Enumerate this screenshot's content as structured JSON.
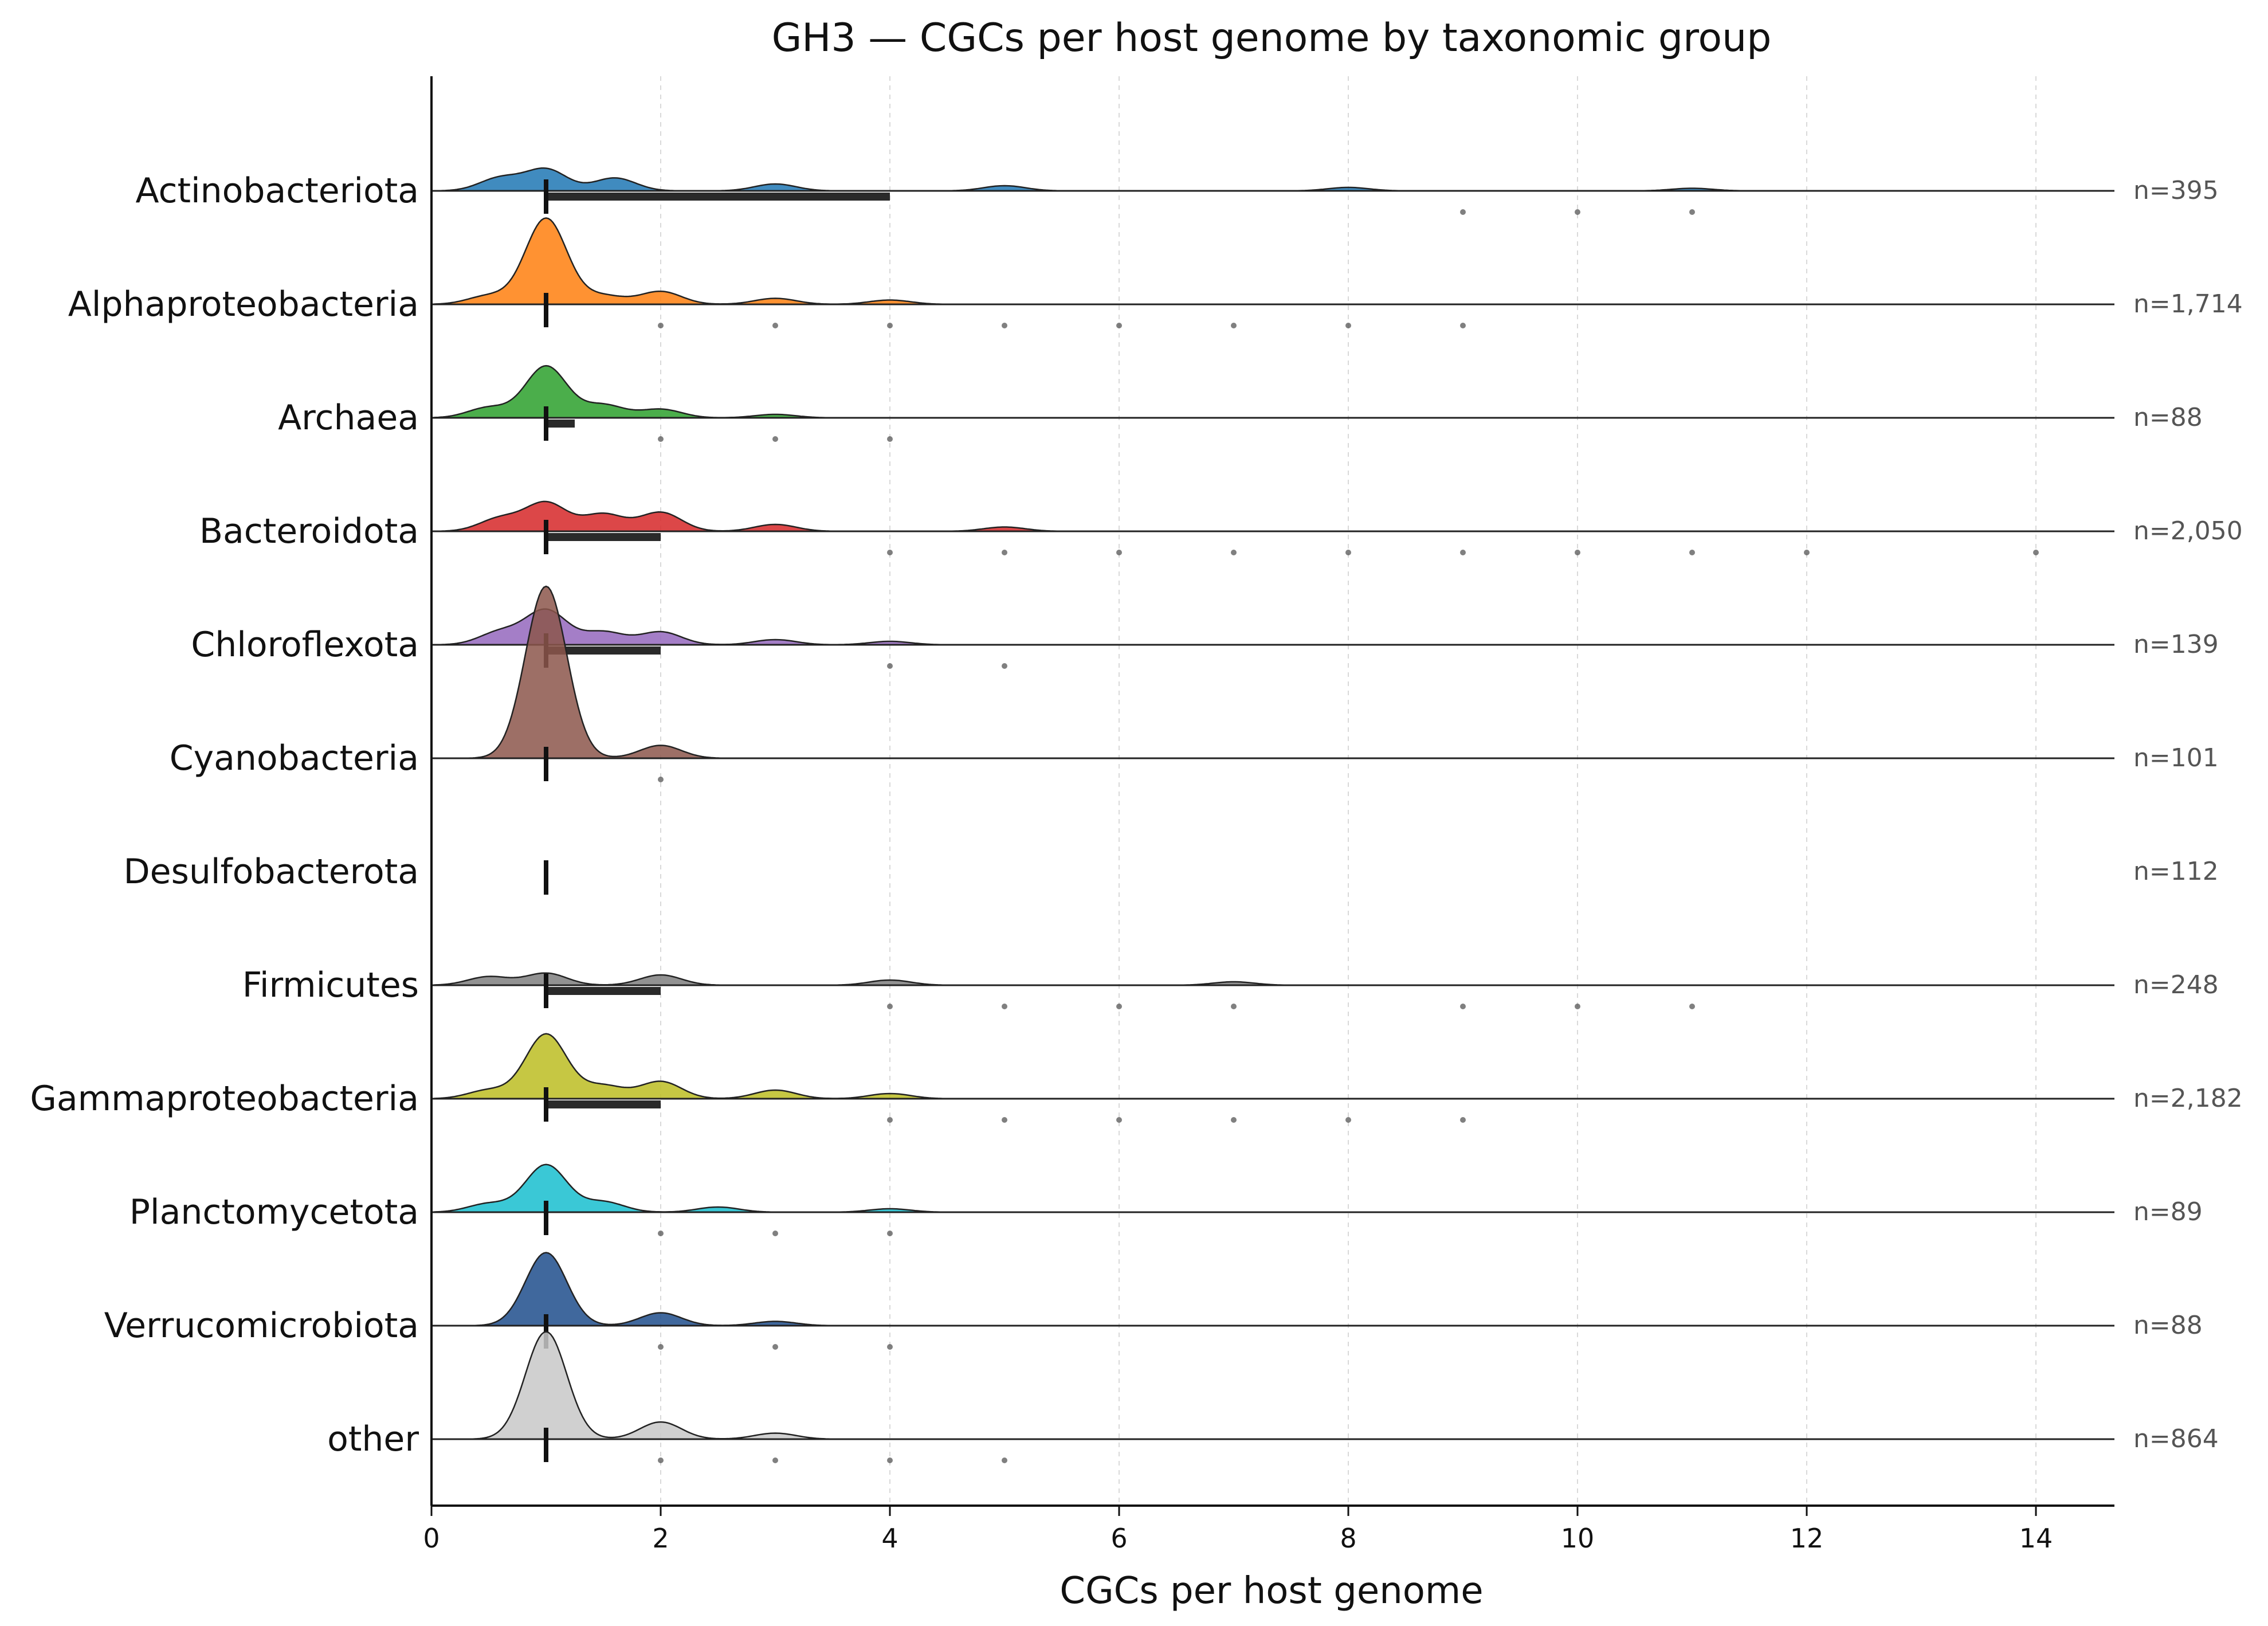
{
  "chart_data": {
    "type": "ridgeline",
    "title": "GH3 — CGCs per host genome by taxonomic group",
    "xlabel": "CGCs per host genome",
    "ylabel": "",
    "xlim": [
      0,
      14.7
    ],
    "xticks": [
      0,
      2,
      4,
      6,
      8,
      10,
      12,
      14
    ],
    "grid": "vertical dashed",
    "legend": "none",
    "categories": [
      "Actinobacteriota",
      "Alphaproteobacteria",
      "Archaea",
      "Bacteroidota",
      "Chloroflexota",
      "Cyanobacteria",
      "Desulfobacterota",
      "Firmicutes",
      "Gammaproteobacteria",
      "Planctomycetota",
      "Verrucomicrobiota",
      "other"
    ],
    "series": [
      {
        "name": "Actinobacteriota",
        "n_label": "n=395",
        "color": "#1f77b4",
        "median": 1,
        "iqr": [
          1,
          4
        ],
        "outliers": [
          9,
          10,
          11
        ],
        "density": [
          [
            0.6,
            0.15
          ],
          [
            1,
            0.25
          ],
          [
            1.6,
            0.15
          ],
          [
            3,
            0.08
          ],
          [
            5,
            0.06
          ],
          [
            8,
            0.04
          ],
          [
            11,
            0.03
          ]
        ]
      },
      {
        "name": "Alphaproteobacteria",
        "n_label": "n=1,714",
        "color": "#ff7f0e",
        "median": 1,
        "iqr": [
          1,
          1
        ],
        "outliers": [
          2,
          3,
          4,
          5,
          6,
          7,
          8,
          9
        ],
        "density": [
          [
            0.5,
            0.1
          ],
          [
            1,
            1.0
          ],
          [
            1.5,
            0.1
          ],
          [
            2,
            0.15
          ],
          [
            3,
            0.07
          ],
          [
            4,
            0.05
          ]
        ]
      },
      {
        "name": "Archaea",
        "n_label": "n=88",
        "color": "#2ca02c",
        "median": 1,
        "iqr": [
          1,
          1.25
        ],
        "outliers": [
          2,
          3,
          4
        ],
        "density": [
          [
            0.5,
            0.12
          ],
          [
            1,
            0.6
          ],
          [
            1.5,
            0.15
          ],
          [
            2,
            0.1
          ],
          [
            3,
            0.04
          ]
        ]
      },
      {
        "name": "Bacteroidota",
        "n_label": "n=2,050",
        "color": "#d62728",
        "median": 1,
        "iqr": [
          1,
          2
        ],
        "outliers": [
          4,
          5,
          6,
          7,
          8,
          9,
          10,
          11,
          12,
          14
        ],
        "density": [
          [
            0.6,
            0.15
          ],
          [
            1,
            0.33
          ],
          [
            1.5,
            0.2
          ],
          [
            2,
            0.22
          ],
          [
            3,
            0.08
          ],
          [
            5,
            0.05
          ]
        ]
      },
      {
        "name": "Chloroflexota",
        "n_label": "n=139",
        "color": "#9467bd",
        "median": 1,
        "iqr": [
          1,
          2
        ],
        "outliers": [
          4,
          5
        ],
        "density": [
          [
            0.6,
            0.15
          ],
          [
            1,
            0.4
          ],
          [
            1.5,
            0.15
          ],
          [
            2,
            0.15
          ],
          [
            3,
            0.06
          ],
          [
            4,
            0.04
          ]
        ]
      },
      {
        "name": "Cyanobacteria",
        "n_label": "n=101",
        "color": "#8c564b",
        "median": 1,
        "iqr": [
          1,
          1
        ],
        "outliers": [
          2
        ],
        "density": [
          [
            1,
            2.0
          ],
          [
            2,
            0.15
          ]
        ]
      },
      {
        "name": "Desulfobacterota",
        "n_label": "n=112",
        "color": "#e377c2",
        "median": 1,
        "iqr": [
          1,
          1
        ],
        "outliers": [],
        "density": []
      },
      {
        "name": "Firmicutes",
        "n_label": "n=248",
        "color": "#7f7f7f",
        "median": 1,
        "iqr": [
          1,
          2
        ],
        "outliers": [
          4,
          5,
          6,
          7,
          9,
          10,
          11
        ],
        "density": [
          [
            0.5,
            0.1
          ],
          [
            1,
            0.14
          ],
          [
            2,
            0.12
          ],
          [
            4,
            0.06
          ],
          [
            7,
            0.04
          ]
        ]
      },
      {
        "name": "Gammaproteobacteria",
        "n_label": "n=2,182",
        "color": "#bcbd22",
        "median": 1,
        "iqr": [
          1,
          2
        ],
        "outliers": [
          4,
          5,
          6,
          7,
          8,
          9
        ],
        "density": [
          [
            0.5,
            0.1
          ],
          [
            1,
            0.75
          ],
          [
            1.5,
            0.15
          ],
          [
            2,
            0.2
          ],
          [
            3,
            0.1
          ],
          [
            4,
            0.06
          ]
        ]
      },
      {
        "name": "Planctomycetota",
        "n_label": "n=89",
        "color": "#17becf",
        "median": 1,
        "iqr": [
          1,
          1
        ],
        "outliers": [
          2,
          3,
          4
        ],
        "density": [
          [
            0.5,
            0.1
          ],
          [
            1,
            0.55
          ],
          [
            1.5,
            0.12
          ],
          [
            2.5,
            0.06
          ],
          [
            4,
            0.04
          ]
        ]
      },
      {
        "name": "Verrucomicrobiota",
        "n_label": "n=88",
        "color": "#1f4e8c",
        "median": 1,
        "iqr": [
          1,
          1
        ],
        "outliers": [
          2,
          3,
          4
        ],
        "density": [
          [
            1,
            0.85
          ],
          [
            2,
            0.15
          ],
          [
            3,
            0.05
          ]
        ]
      },
      {
        "name": "other",
        "n_label": "n=864",
        "color": "#c8c8c8",
        "median": 1,
        "iqr": [
          1,
          1
        ],
        "outliers": [
          2,
          3,
          4,
          5
        ],
        "density": [
          [
            1,
            1.25
          ],
          [
            2,
            0.2
          ],
          [
            3,
            0.07
          ]
        ]
      }
    ]
  }
}
